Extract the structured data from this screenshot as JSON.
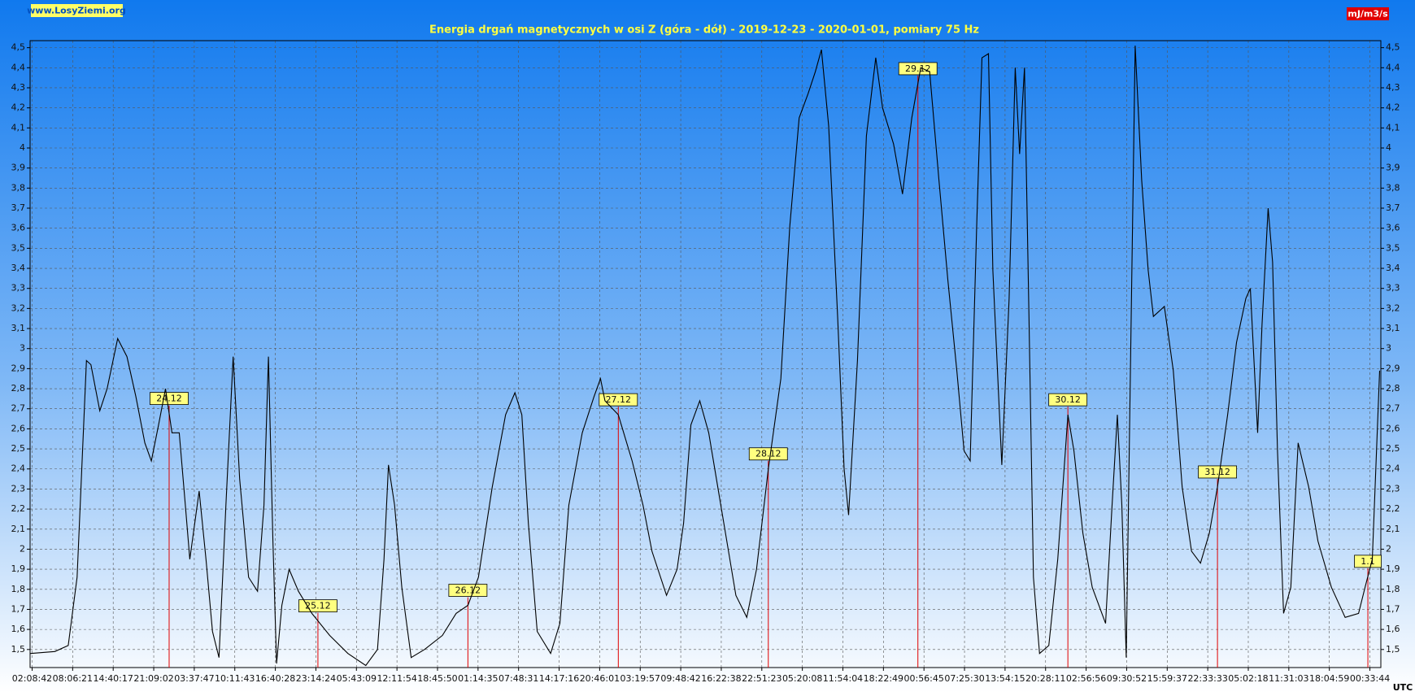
{
  "chart_data": {
    "type": "line",
    "title": "Energia drgań magnetycznych w osi Z (góra - dół) - 2019-12-23 - 2020-01-01, pomiary 75 Hz",
    "site": "www.LosyZiemi.org",
    "unit": "mJ/m3/s",
    "x_label": "UTC",
    "grid": true,
    "xlim": [
      -0.05,
      33.27
    ],
    "ylim": [
      1.41,
      4.535
    ],
    "xticks": [
      {
        "value": 0,
        "label": "02:08:42"
      },
      {
        "value": 1,
        "label": "08:06:21"
      },
      {
        "value": 2,
        "label": "14:40:17"
      },
      {
        "value": 3,
        "label": "21:09:02"
      },
      {
        "value": 4,
        "label": "03:37:47"
      },
      {
        "value": 5,
        "label": "10:11:43"
      },
      {
        "value": 6,
        "label": "16:40:28"
      },
      {
        "value": 7,
        "label": "23:14:24"
      },
      {
        "value": 8,
        "label": "05:43:09"
      },
      {
        "value": 9,
        "label": "12:11:54"
      },
      {
        "value": 10,
        "label": "18:45:50"
      },
      {
        "value": 11,
        "label": "01:14:35"
      },
      {
        "value": 12,
        "label": "07:48:31"
      },
      {
        "value": 13,
        "label": "14:17:16"
      },
      {
        "value": 14,
        "label": "20:46:01"
      },
      {
        "value": 15,
        "label": "03:19:57"
      },
      {
        "value": 16,
        "label": "09:48:42"
      },
      {
        "value": 17,
        "label": "16:22:38"
      },
      {
        "value": 18,
        "label": "22:51:23"
      },
      {
        "value": 19,
        "label": "05:20:08"
      },
      {
        "value": 20,
        "label": "11:54:04"
      },
      {
        "value": 21,
        "label": "18:22:49"
      },
      {
        "value": 22,
        "label": "00:56:45"
      },
      {
        "value": 23,
        "label": "07:25:30"
      },
      {
        "value": 24,
        "label": "13:54:15"
      },
      {
        "value": 25,
        "label": "20:28:11"
      },
      {
        "value": 26,
        "label": "02:56:56"
      },
      {
        "value": 27,
        "label": "09:30:52"
      },
      {
        "value": 28,
        "label": "15:59:37"
      },
      {
        "value": 29,
        "label": "22:33:33"
      },
      {
        "value": 30,
        "label": "05:02:18"
      },
      {
        "value": 31,
        "label": "11:31:03"
      },
      {
        "value": 32,
        "label": "18:04:59"
      },
      {
        "value": 33,
        "label": "00:33:44"
      }
    ],
    "yticks": [
      {
        "value": 1.5,
        "label": "1,5"
      },
      {
        "value": 1.6,
        "label": "1,6"
      },
      {
        "value": 1.7,
        "label": "1,7"
      },
      {
        "value": 1.8,
        "label": "1,8"
      },
      {
        "value": 1.9,
        "label": "1,9"
      },
      2,
      {
        "value": 2.1,
        "label": "2,1"
      },
      {
        "value": 2.2,
        "label": "2,2"
      },
      {
        "value": 2.3,
        "label": "2,3"
      },
      {
        "value": 2.4,
        "label": "2,4"
      },
      {
        "value": 2.5,
        "label": "2,5"
      },
      {
        "value": 2.6,
        "label": "2,6"
      },
      {
        "value": 2.7,
        "label": "2,7"
      },
      {
        "value": 2.8,
        "label": "2,8"
      },
      {
        "value": 2.9,
        "label": "2,9"
      },
      3,
      {
        "value": 3.1,
        "label": "3,1"
      },
      {
        "value": 3.2,
        "label": "3,2"
      },
      {
        "value": 3.3,
        "label": "3,3"
      },
      {
        "value": 3.4,
        "label": "3,4"
      },
      {
        "value": 3.5,
        "label": "3,5"
      },
      {
        "value": 3.6,
        "label": "3,6"
      },
      {
        "value": 3.7,
        "label": "3,7"
      },
      {
        "value": 3.8,
        "label": "3,8"
      },
      {
        "value": 3.9,
        "label": "3,9"
      },
      4,
      {
        "value": 4.1,
        "label": "4,1"
      },
      {
        "value": 4.2,
        "label": "4,2"
      },
      {
        "value": 4.3,
        "label": "4,3"
      },
      {
        "value": 4.4,
        "label": "4,4"
      },
      {
        "value": 4.5,
        "label": "4,5"
      }
    ],
    "series": [
      {
        "color": "#000000",
        "x": [
          -0.04,
          0.56,
          0.89,
          1.11,
          1.34,
          1.45,
          1.67,
          1.85,
          2.11,
          2.34,
          2.56,
          2.78,
          2.94,
          3.12,
          3.29,
          3.45,
          3.63,
          3.78,
          3.89,
          4.12,
          4.29,
          4.45,
          4.61,
          4.78,
          4.96,
          5.12,
          5.34,
          5.56,
          5.72,
          5.83,
          5.94,
          6.03,
          6.16,
          6.34,
          6.57,
          6.9,
          7.34,
          7.79,
          8.23,
          8.52,
          8.68,
          8.79,
          8.94,
          9.12,
          9.35,
          9.68,
          10.12,
          10.46,
          10.75,
          11.01,
          11.35,
          11.68,
          11.91,
          12.08,
          12.24,
          12.46,
          12.79,
          13.02,
          13.24,
          13.57,
          13.86,
          14.02,
          14.13,
          14.46,
          14.8,
          15.07,
          15.29,
          15.65,
          15.91,
          16.07,
          16.25,
          16.47,
          16.69,
          17.03,
          17.36,
          17.63,
          17.87,
          18.16,
          18.47,
          18.69,
          18.92,
          19.14,
          19.32,
          19.47,
          19.65,
          19.87,
          20.03,
          20.14,
          20.36,
          20.58,
          20.81,
          20.98,
          21.25,
          21.47,
          21.7,
          21.92,
          22.14,
          22.37,
          22.59,
          22.81,
          22.99,
          23.14,
          23.3,
          23.43,
          23.59,
          23.7,
          23.92,
          24.1,
          24.25,
          24.36,
          24.48,
          24.59,
          24.7,
          24.85,
          25.08,
          25.3,
          25.55,
          25.7,
          25.92,
          26.15,
          26.48,
          26.64,
          26.77,
          26.88,
          26.99,
          27.08,
          27.21,
          27.37,
          27.53,
          27.66,
          27.93,
          28.15,
          28.37,
          28.6,
          28.82,
          29.04,
          29.24,
          29.49,
          29.71,
          29.94,
          30.05,
          30.23,
          30.34,
          30.49,
          30.6,
          30.72,
          30.87,
          31.05,
          31.23,
          31.49,
          31.72,
          32.05,
          32.39,
          32.72,
          32.88,
          33.06,
          33.24
        ],
        "values": [
          1.48,
          1.49,
          1.52,
          1.86,
          2.94,
          2.92,
          2.69,
          2.8,
          3.05,
          2.96,
          2.76,
          2.53,
          2.44,
          2.62,
          2.8,
          2.58,
          2.58,
          2.22,
          1.95,
          2.29,
          1.95,
          1.59,
          1.46,
          2.22,
          2.96,
          2.35,
          1.86,
          1.79,
          2.22,
          2.96,
          2.04,
          1.43,
          1.72,
          1.9,
          1.79,
          1.68,
          1.57,
          1.48,
          1.42,
          1.5,
          1.95,
          2.42,
          2.22,
          1.81,
          1.46,
          1.5,
          1.57,
          1.68,
          1.72,
          1.86,
          2.31,
          2.67,
          2.78,
          2.67,
          2.13,
          1.59,
          1.48,
          1.63,
          2.22,
          2.58,
          2.76,
          2.85,
          2.74,
          2.67,
          2.44,
          2.22,
          1.99,
          1.77,
          1.9,
          2.13,
          2.62,
          2.74,
          2.58,
          2.17,
          1.77,
          1.66,
          1.9,
          2.4,
          2.85,
          3.61,
          4.15,
          4.27,
          4.38,
          4.49,
          4.11,
          3.16,
          2.4,
          2.17,
          2.94,
          4.06,
          4.45,
          4.2,
          4.02,
          3.77,
          4.15,
          4.4,
          4.38,
          3.84,
          3.34,
          2.89,
          2.49,
          2.44,
          3.61,
          4.45,
          4.47,
          3.39,
          2.42,
          3.25,
          4.4,
          3.97,
          4.4,
          3.16,
          1.86,
          1.48,
          1.52,
          1.95,
          2.67,
          2.49,
          2.08,
          1.81,
          1.63,
          2.22,
          2.67,
          2.22,
          1.46,
          2.71,
          4.51,
          3.84,
          3.39,
          3.16,
          3.21,
          2.89,
          2.31,
          1.99,
          1.93,
          2.08,
          2.31,
          2.67,
          3.03,
          3.25,
          3.3,
          2.58,
          3.12,
          3.7,
          3.43,
          2.49,
          1.68,
          1.81,
          2.53,
          2.31,
          2.04,
          1.81,
          1.66,
          1.68,
          1.81,
          1.95,
          2.89
        ]
      }
    ],
    "annotations": [
      {
        "label": "24.12",
        "x": 3.38
      },
      {
        "label": "25.12",
        "x": 7.05
      },
      {
        "label": "26.12",
        "x": 10.75
      },
      {
        "label": "27.12",
        "x": 14.46
      },
      {
        "label": "28.12",
        "x": 18.16
      },
      {
        "label": "29.12",
        "x": 21.85
      },
      {
        "label": "30.12",
        "x": 25.55
      },
      {
        "label": "31.12",
        "x": 29.24
      },
      {
        "label": "1.1",
        "x": 32.95
      }
    ]
  }
}
